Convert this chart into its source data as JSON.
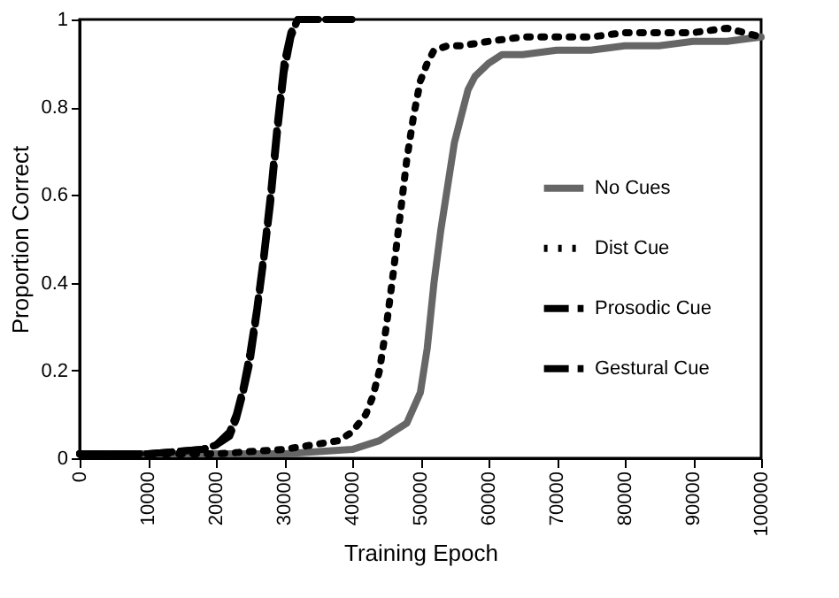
{
  "chart_data": {
    "type": "line",
    "xlabel": "Training Epoch",
    "ylabel": "Proportion Correct",
    "xlim": [
      0,
      100000
    ],
    "xticks": [
      0,
      10000,
      20000,
      30000,
      40000,
      50000,
      60000,
      70000,
      80000,
      90000,
      100000
    ],
    "ylim": [
      0,
      1
    ],
    "yticks": [
      0,
      0.2,
      0.4,
      0.6,
      0.8,
      1
    ],
    "grid": false,
    "legend": "right",
    "marker": "none",
    "series": [
      {
        "name": "No Cues",
        "color": "#666666",
        "line_style": "solid",
        "x": [
          0,
          10000,
          20000,
          30000,
          40000,
          44000,
          46000,
          48000,
          50000,
          51000,
          52000,
          53000,
          54000,
          55000,
          56000,
          57000,
          58000,
          60000,
          62000,
          65000,
          70000,
          75000,
          80000,
          85000,
          90000,
          95000,
          100000
        ],
        "values": [
          0.01,
          0.01,
          0.01,
          0.01,
          0.02,
          0.04,
          0.06,
          0.08,
          0.15,
          0.25,
          0.4,
          0.52,
          0.62,
          0.72,
          0.78,
          0.84,
          0.87,
          0.9,
          0.92,
          0.92,
          0.93,
          0.93,
          0.94,
          0.94,
          0.95,
          0.95,
          0.96
        ]
      },
      {
        "name": "Dist Cue",
        "color": "#000000",
        "line_style": "dotted",
        "x": [
          0,
          10000,
          20000,
          30000,
          38000,
          40000,
          42000,
          43000,
          44000,
          45000,
          46000,
          47000,
          48000,
          49000,
          50000,
          51000,
          52000,
          54000,
          56000,
          60000,
          65000,
          70000,
          75000,
          80000,
          85000,
          90000,
          95000,
          100000
        ],
        "values": [
          0.01,
          0.01,
          0.01,
          0.02,
          0.04,
          0.06,
          0.1,
          0.14,
          0.2,
          0.3,
          0.42,
          0.55,
          0.68,
          0.78,
          0.86,
          0.9,
          0.93,
          0.94,
          0.94,
          0.95,
          0.96,
          0.96,
          0.96,
          0.97,
          0.97,
          0.97,
          0.98,
          0.96
        ]
      },
      {
        "name": "Prosodic Cue",
        "color": "#000000",
        "line_style": "dashed",
        "x": [
          0,
          10000,
          18000,
          20000,
          22000,
          23000,
          24000,
          25000,
          26000,
          27000,
          28000,
          29000,
          30000,
          31000,
          32000,
          35000,
          40000
        ],
        "values": [
          0.01,
          0.01,
          0.02,
          0.03,
          0.06,
          0.1,
          0.16,
          0.24,
          0.34,
          0.46,
          0.6,
          0.76,
          0.9,
          0.97,
          1,
          1,
          1
        ]
      },
      {
        "name": "Gestural Cue",
        "color": "#000000",
        "line_style": "dashed",
        "x": [
          0,
          10000,
          18000,
          20000,
          22000,
          23000,
          24000,
          25000,
          26000,
          27000,
          28000,
          29000,
          30000,
          31000,
          32000,
          35000,
          40000
        ],
        "values": [
          0.01,
          0.01,
          0.02,
          0.03,
          0.05,
          0.09,
          0.15,
          0.22,
          0.33,
          0.45,
          0.58,
          0.74,
          0.88,
          0.96,
          1,
          1,
          1
        ]
      }
    ]
  }
}
